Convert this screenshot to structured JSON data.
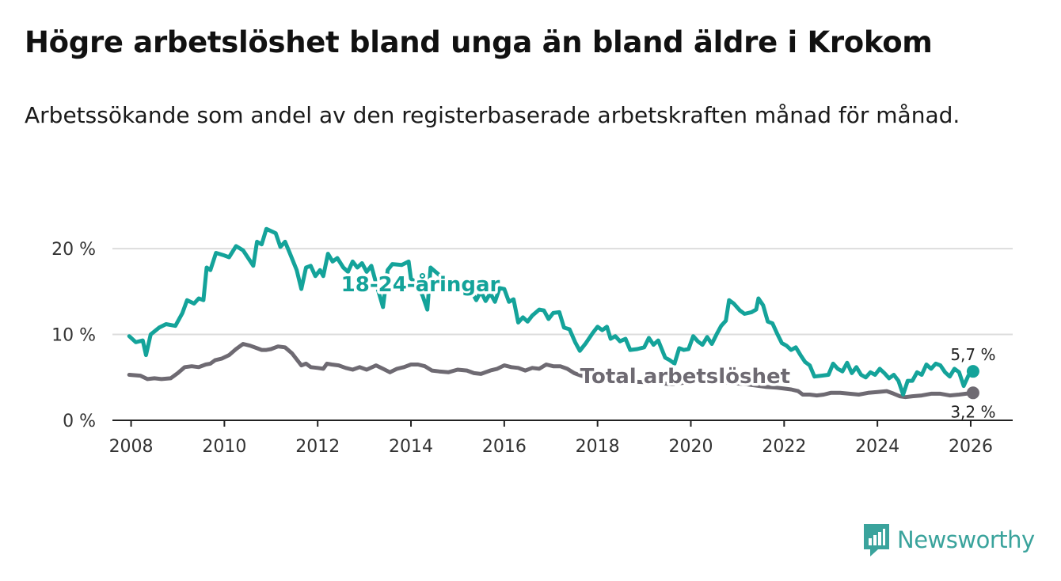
{
  "header": {
    "title": "Högre arbetslöshet bland unga än bland äldre i Krokom",
    "subtitle": "Arbetssökande som andel av den registerbaserade arbetskraften månad för månad."
  },
  "brand": {
    "name": "Newsworthy",
    "color": "#3aa39c",
    "icon": "newsworthy-logo-icon"
  },
  "colors": {
    "youth": "#14a39a",
    "total": "#6e6a72",
    "grid": "#dddddd",
    "axis": "#222222"
  },
  "chart_data": {
    "type": "line",
    "title": "Högre arbetslöshet bland unga än bland äldre i Krokom",
    "xlabel": "",
    "ylabel": "",
    "xlim": [
      2007.6,
      2026.9
    ],
    "ylim": [
      0,
      22.5
    ],
    "x_ticks": [
      2008,
      2010,
      2012,
      2014,
      2016,
      2018,
      2020,
      2022,
      2024,
      2026
    ],
    "y_ticks": [
      {
        "value": 0,
        "label": "0 %"
      },
      {
        "value": 10,
        "label": "10 %"
      },
      {
        "value": 20,
        "label": "20 %"
      }
    ],
    "grid": true,
    "series": [
      {
        "name": "18-24-åringar",
        "color": "#14a39a",
        "label_anchor_x": 2012.5,
        "end_label": "5,7 %",
        "points": [
          [
            2007.96,
            9.8
          ],
          [
            2008.1,
            9.1
          ],
          [
            2008.25,
            9.3
          ],
          [
            2008.32,
            7.6
          ],
          [
            2008.42,
            10.0
          ],
          [
            2008.6,
            10.8
          ],
          [
            2008.75,
            11.2
          ],
          [
            2008.95,
            11.0
          ],
          [
            2009.1,
            12.5
          ],
          [
            2009.2,
            14.0
          ],
          [
            2009.35,
            13.6
          ],
          [
            2009.45,
            14.2
          ],
          [
            2009.55,
            14.0
          ],
          [
            2009.62,
            17.8
          ],
          [
            2009.7,
            17.5
          ],
          [
            2009.82,
            19.5
          ],
          [
            2010.0,
            19.2
          ],
          [
            2010.1,
            19.0
          ],
          [
            2010.25,
            20.3
          ],
          [
            2010.4,
            19.8
          ],
          [
            2010.5,
            19.0
          ],
          [
            2010.62,
            18.0
          ],
          [
            2010.7,
            20.8
          ],
          [
            2010.8,
            20.5
          ],
          [
            2010.9,
            22.3
          ],
          [
            2011.1,
            21.8
          ],
          [
            2011.2,
            20.2
          ],
          [
            2011.3,
            20.8
          ],
          [
            2011.4,
            19.5
          ],
          [
            2011.55,
            17.5
          ],
          [
            2011.65,
            15.3
          ],
          [
            2011.75,
            17.8
          ],
          [
            2011.85,
            18.0
          ],
          [
            2011.95,
            16.8
          ],
          [
            2012.05,
            17.5
          ],
          [
            2012.12,
            16.8
          ],
          [
            2012.22,
            19.4
          ],
          [
            2012.32,
            18.5
          ],
          [
            2012.42,
            18.9
          ],
          [
            2012.55,
            17.8
          ],
          [
            2012.65,
            17.3
          ],
          [
            2012.75,
            18.5
          ],
          [
            2012.85,
            17.8
          ],
          [
            2012.95,
            18.3
          ],
          [
            2013.05,
            17.3
          ],
          [
            2013.15,
            18.0
          ],
          [
            2013.25,
            16.0
          ],
          [
            2013.4,
            13.2
          ],
          [
            2013.5,
            17.5
          ],
          [
            2013.6,
            18.2
          ],
          [
            2013.8,
            18.1
          ],
          [
            2013.95,
            18.5
          ],
          [
            2014.0,
            16.5
          ],
          [
            2014.12,
            16.0
          ],
          [
            2014.25,
            14.5
          ],
          [
            2014.35,
            12.9
          ],
          [
            2014.42,
            17.8
          ],
          [
            2014.55,
            17.2
          ],
          [
            2014.7,
            16.5
          ],
          [
            2014.85,
            16.2
          ],
          [
            2015.0,
            16.0
          ],
          [
            2015.15,
            15.5
          ],
          [
            2015.3,
            15.0
          ],
          [
            2015.4,
            14.0
          ],
          [
            2015.5,
            15.0
          ],
          [
            2015.6,
            13.9
          ],
          [
            2015.7,
            14.8
          ],
          [
            2015.8,
            13.8
          ],
          [
            2015.9,
            15.4
          ],
          [
            2016.0,
            15.3
          ],
          [
            2016.1,
            13.8
          ],
          [
            2016.2,
            14.1
          ],
          [
            2016.3,
            11.4
          ],
          [
            2016.4,
            12.0
          ],
          [
            2016.5,
            11.5
          ],
          [
            2016.6,
            12.2
          ],
          [
            2016.75,
            12.9
          ],
          [
            2016.85,
            12.8
          ],
          [
            2016.95,
            11.8
          ],
          [
            2017.05,
            12.5
          ],
          [
            2017.18,
            12.6
          ],
          [
            2017.28,
            10.8
          ],
          [
            2017.4,
            10.6
          ],
          [
            2017.52,
            9.1
          ],
          [
            2017.62,
            8.1
          ],
          [
            2017.75,
            9.0
          ],
          [
            2017.9,
            10.2
          ],
          [
            2018.0,
            10.9
          ],
          [
            2018.1,
            10.5
          ],
          [
            2018.2,
            10.9
          ],
          [
            2018.28,
            9.5
          ],
          [
            2018.38,
            9.8
          ],
          [
            2018.48,
            9.2
          ],
          [
            2018.6,
            9.5
          ],
          [
            2018.7,
            8.2
          ],
          [
            2018.85,
            8.3
          ],
          [
            2019.0,
            8.5
          ],
          [
            2019.1,
            9.6
          ],
          [
            2019.2,
            8.8
          ],
          [
            2019.3,
            9.3
          ],
          [
            2019.45,
            7.3
          ],
          [
            2019.55,
            7.0
          ],
          [
            2019.65,
            6.6
          ],
          [
            2019.75,
            8.4
          ],
          [
            2019.85,
            8.2
          ],
          [
            2019.95,
            8.3
          ],
          [
            2020.05,
            9.8
          ],
          [
            2020.15,
            9.2
          ],
          [
            2020.25,
            8.8
          ],
          [
            2020.35,
            9.7
          ],
          [
            2020.45,
            8.9
          ],
          [
            2020.55,
            10.0
          ],
          [
            2020.65,
            11.0
          ],
          [
            2020.75,
            11.6
          ],
          [
            2020.82,
            14.0
          ],
          [
            2020.92,
            13.6
          ],
          [
            2021.05,
            12.8
          ],
          [
            2021.15,
            12.4
          ],
          [
            2021.3,
            12.6
          ],
          [
            2021.4,
            12.9
          ],
          [
            2021.45,
            14.2
          ],
          [
            2021.55,
            13.4
          ],
          [
            2021.65,
            11.5
          ],
          [
            2021.75,
            11.3
          ],
          [
            2021.85,
            10.1
          ],
          [
            2021.95,
            9.0
          ],
          [
            2022.05,
            8.7
          ],
          [
            2022.15,
            8.2
          ],
          [
            2022.25,
            8.5
          ],
          [
            2022.35,
            7.6
          ],
          [
            2022.45,
            6.8
          ],
          [
            2022.55,
            6.4
          ],
          [
            2022.65,
            5.1
          ],
          [
            2022.8,
            5.2
          ],
          [
            2022.95,
            5.3
          ],
          [
            2023.05,
            6.6
          ],
          [
            2023.15,
            6.0
          ],
          [
            2023.25,
            5.7
          ],
          [
            2023.35,
            6.7
          ],
          [
            2023.45,
            5.5
          ],
          [
            2023.55,
            6.2
          ],
          [
            2023.65,
            5.3
          ],
          [
            2023.75,
            5.0
          ],
          [
            2023.85,
            5.6
          ],
          [
            2023.95,
            5.3
          ],
          [
            2024.05,
            6.0
          ],
          [
            2024.15,
            5.5
          ],
          [
            2024.25,
            4.9
          ],
          [
            2024.35,
            5.3
          ],
          [
            2024.45,
            4.6
          ],
          [
            2024.55,
            3.0
          ],
          [
            2024.65,
            4.6
          ],
          [
            2024.75,
            4.6
          ],
          [
            2024.85,
            5.6
          ],
          [
            2024.95,
            5.3
          ],
          [
            2025.05,
            6.5
          ],
          [
            2025.15,
            6.0
          ],
          [
            2025.25,
            6.6
          ],
          [
            2025.35,
            6.4
          ],
          [
            2025.45,
            5.6
          ],
          [
            2025.55,
            5.1
          ],
          [
            2025.65,
            6.0
          ],
          [
            2025.75,
            5.6
          ],
          [
            2025.85,
            4.0
          ],
          [
            2025.95,
            5.2
          ],
          [
            2026.05,
            5.7
          ]
        ]
      },
      {
        "name": "Total arbetslöshet",
        "color": "#6e6a72",
        "label_anchor_x": 2018.0,
        "end_label": "3,2 %",
        "points": [
          [
            2007.96,
            5.3
          ],
          [
            2008.2,
            5.2
          ],
          [
            2008.35,
            4.8
          ],
          [
            2008.5,
            4.9
          ],
          [
            2008.65,
            4.8
          ],
          [
            2008.85,
            4.9
          ],
          [
            2009.0,
            5.5
          ],
          [
            2009.15,
            6.2
          ],
          [
            2009.3,
            6.3
          ],
          [
            2009.45,
            6.2
          ],
          [
            2009.6,
            6.5
          ],
          [
            2009.7,
            6.6
          ],
          [
            2009.8,
            7.0
          ],
          [
            2009.95,
            7.2
          ],
          [
            2010.1,
            7.6
          ],
          [
            2010.25,
            8.3
          ],
          [
            2010.4,
            8.9
          ],
          [
            2010.55,
            8.7
          ],
          [
            2010.7,
            8.4
          ],
          [
            2010.8,
            8.2
          ],
          [
            2010.9,
            8.2
          ],
          [
            2011.0,
            8.3
          ],
          [
            2011.15,
            8.6
          ],
          [
            2011.3,
            8.5
          ],
          [
            2011.45,
            7.8
          ],
          [
            2011.55,
            7.1
          ],
          [
            2011.65,
            6.4
          ],
          [
            2011.75,
            6.6
          ],
          [
            2011.85,
            6.2
          ],
          [
            2012.0,
            6.1
          ],
          [
            2012.12,
            6.0
          ],
          [
            2012.2,
            6.6
          ],
          [
            2012.3,
            6.5
          ],
          [
            2012.45,
            6.4
          ],
          [
            2012.6,
            6.1
          ],
          [
            2012.75,
            5.9
          ],
          [
            2012.9,
            6.2
          ],
          [
            2013.05,
            5.9
          ],
          [
            2013.25,
            6.4
          ],
          [
            2013.4,
            6.0
          ],
          [
            2013.55,
            5.6
          ],
          [
            2013.7,
            6.0
          ],
          [
            2013.85,
            6.2
          ],
          [
            2014.0,
            6.5
          ],
          [
            2014.15,
            6.5
          ],
          [
            2014.3,
            6.3
          ],
          [
            2014.45,
            5.8
          ],
          [
            2014.6,
            5.7
          ],
          [
            2014.8,
            5.6
          ],
          [
            2015.0,
            5.9
          ],
          [
            2015.2,
            5.8
          ],
          [
            2015.35,
            5.5
          ],
          [
            2015.5,
            5.4
          ],
          [
            2015.7,
            5.8
          ],
          [
            2015.85,
            6.0
          ],
          [
            2016.0,
            6.4
          ],
          [
            2016.15,
            6.2
          ],
          [
            2016.3,
            6.1
          ],
          [
            2016.45,
            5.8
          ],
          [
            2016.6,
            6.1
          ],
          [
            2016.75,
            6.0
          ],
          [
            2016.9,
            6.5
          ],
          [
            2017.05,
            6.3
          ],
          [
            2017.2,
            6.3
          ],
          [
            2017.35,
            6.0
          ],
          [
            2017.5,
            5.5
          ],
          [
            2017.65,
            5.2
          ],
          [
            2017.8,
            5.0
          ],
          [
            2018.0,
            4.8
          ],
          [
            2018.4,
            4.7
          ],
          [
            2018.8,
            4.5
          ],
          [
            2019.2,
            4.4
          ],
          [
            2019.6,
            4.2
          ],
          [
            2020.0,
            4.5
          ],
          [
            2020.4,
            4.6
          ],
          [
            2020.8,
            4.4
          ],
          [
            2021.2,
            4.2
          ],
          [
            2021.6,
            3.9
          ],
          [
            2021.85,
            3.8
          ],
          [
            2022.0,
            3.7
          ],
          [
            2022.15,
            3.6
          ],
          [
            2022.3,
            3.4
          ],
          [
            2022.4,
            3.0
          ],
          [
            2022.55,
            3.0
          ],
          [
            2022.7,
            2.9
          ],
          [
            2022.85,
            3.0
          ],
          [
            2023.0,
            3.2
          ],
          [
            2023.2,
            3.2
          ],
          [
            2023.4,
            3.1
          ],
          [
            2023.6,
            3.0
          ],
          [
            2023.8,
            3.2
          ],
          [
            2024.0,
            3.3
          ],
          [
            2024.2,
            3.4
          ],
          [
            2024.35,
            3.1
          ],
          [
            2024.48,
            2.8
          ],
          [
            2024.6,
            2.7
          ],
          [
            2024.75,
            2.8
          ],
          [
            2024.95,
            2.9
          ],
          [
            2025.15,
            3.1
          ],
          [
            2025.35,
            3.1
          ],
          [
            2025.55,
            2.9
          ],
          [
            2025.75,
            3.0
          ],
          [
            2025.9,
            3.1
          ],
          [
            2026.05,
            3.2
          ]
        ]
      }
    ]
  }
}
